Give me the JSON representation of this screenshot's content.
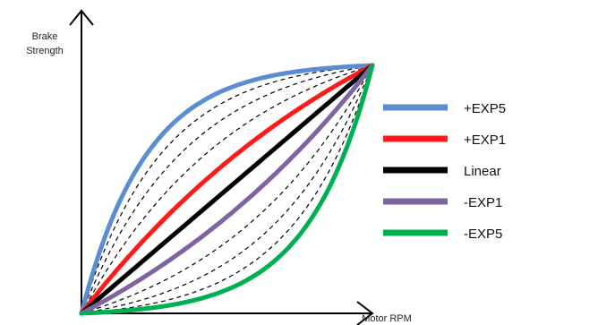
{
  "chart_data": {
    "type": "line",
    "title": "",
    "xlabel": "Motor RPM",
    "ylabel_lines": [
      "Brake",
      "Strength"
    ],
    "xlim": [
      0,
      1
    ],
    "ylim": [
      0,
      1
    ],
    "grid": false,
    "legend_position": "right",
    "series": [
      {
        "name": "+EXP5",
        "color": "#5b8ed0",
        "curvature": 5
      },
      {
        "name": "+EXP1",
        "color": "#ff1a1a",
        "curvature": 1
      },
      {
        "name": "Linear",
        "color": "#000000",
        "curvature": 0
      },
      {
        "name": "-EXP1",
        "color": "#8064a2",
        "curvature": -1
      },
      {
        "name": "-EXP5",
        "color": "#00b050",
        "curvature": -5
      }
    ],
    "intermediate_dashed_curvatures": [
      -4,
      -3,
      -2,
      2,
      3,
      4
    ]
  }
}
